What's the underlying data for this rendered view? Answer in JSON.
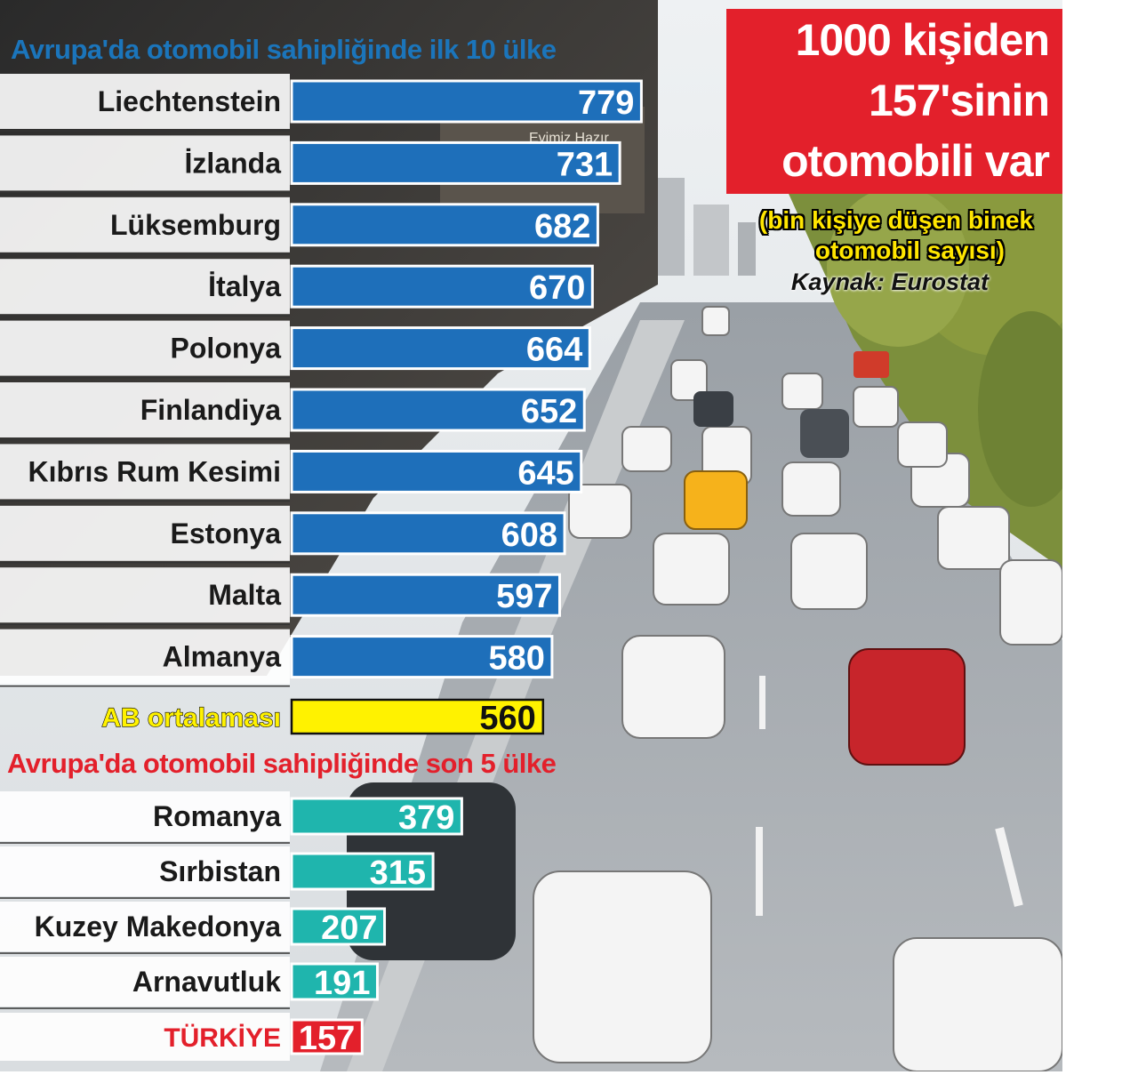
{
  "headline": {
    "line1": "1000 kişiden",
    "line2": "157'sinin",
    "line3": "otomobili var"
  },
  "note": {
    "line1": "(bin kişiye düşen binek",
    "line2": "otomobil sayısı)"
  },
  "source": "Kaynak: Eurostat",
  "colors": {
    "top_bar": "#1e6fba",
    "eu_bar": "#fff200",
    "bottom_bar": "#1fb5ad",
    "turkey_bar": "#e3202b",
    "headline_bg": "#e3202b",
    "top_title": "#1b75bb",
    "bottom_title": "#e3202b"
  },
  "chart_data": {
    "type": "bar",
    "orientation": "horizontal",
    "top_section_title": "Avrupa'da otomobil sahipliğinde ilk 10 ülke",
    "bottom_section_title": "Avrupa'da otomobil sahipliğinde son 5 ülke",
    "top_categories": [
      "Liechtenstein",
      "İzlanda",
      "Lüksemburg",
      "İtalya",
      "Polonya",
      "Finlandiya",
      "Kıbrıs Rum Kesimi",
      "Estonya",
      "Malta",
      "Almanya"
    ],
    "top_values": [
      779,
      731,
      682,
      670,
      664,
      652,
      645,
      608,
      597,
      580
    ],
    "eu_average": {
      "label": "AB ortalaması",
      "value": 560
    },
    "bottom_categories": [
      "Romanya",
      "Sırbistan",
      "Kuzey Makedonya",
      "Arnavutluk"
    ],
    "bottom_values": [
      379,
      315,
      207,
      191
    ],
    "turkey": {
      "label": "TÜRKİYE",
      "value": 157
    }
  }
}
